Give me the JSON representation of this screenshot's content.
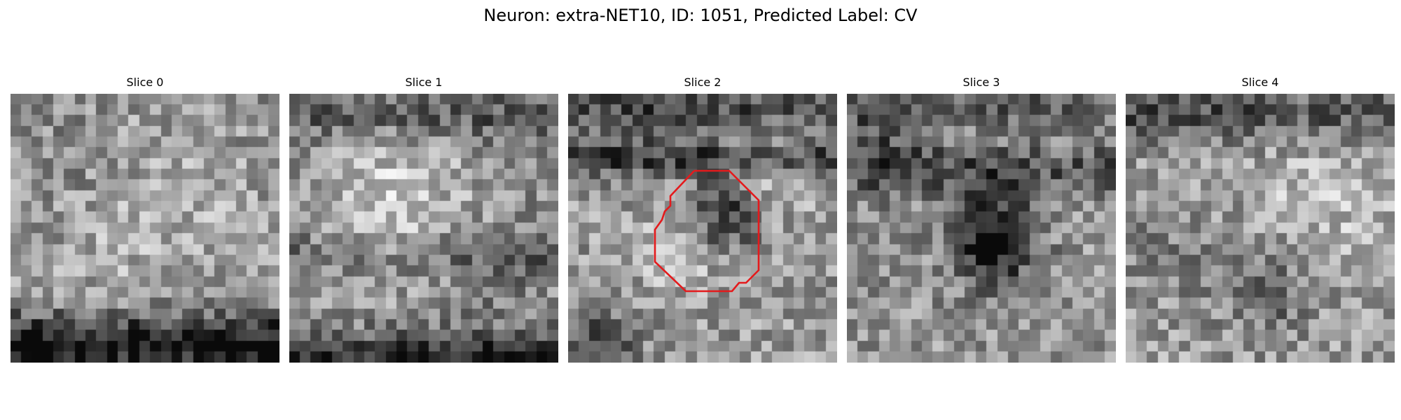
{
  "figure": {
    "title": "Neuron: extra-NET10, ID: 1051, Predicted Label: CV",
    "grid_size": 25,
    "outline_color": "#e41a1c"
  },
  "panels": [
    {
      "title": "Slice 0",
      "seed": 11,
      "base": 0.55,
      "blobs": [
        [
          12,
          12,
          9,
          0.14
        ],
        [
          6,
          6,
          4,
          -0.08
        ]
      ],
      "bands": [
        [
          22,
          1.8,
          -0.38
        ],
        [
          23.6,
          1.2,
          -0.28
        ]
      ]
    },
    {
      "title": "Slice 1",
      "seed": 23,
      "base": 0.56,
      "blobs": [
        [
          9,
          10,
          5,
          0.24
        ],
        [
          18,
          17,
          4,
          -0.06
        ]
      ],
      "bands": [
        [
          1.5,
          1.6,
          -0.22
        ],
        [
          14.5,
          1.4,
          -0.16
        ],
        [
          24,
          1.6,
          -0.42
        ]
      ]
    },
    {
      "title": "Slice 2",
      "seed": 37,
      "base": 0.6,
      "blobs": [
        [
          14,
          11,
          2.3,
          -0.42
        ],
        [
          10,
          14,
          3,
          0.16
        ],
        [
          18,
          6,
          3,
          0.18
        ],
        [
          2,
          23,
          2.5,
          -0.35
        ]
      ],
      "bands": [
        [
          1,
          1.5,
          -0.32
        ],
        [
          5.5,
          1.3,
          -0.36
        ]
      ],
      "outline": true
    },
    {
      "title": "Slice 3",
      "seed": 51,
      "base": 0.58,
      "blobs": [
        [
          13,
          14,
          2.6,
          -0.42
        ],
        [
          13,
          11,
          3,
          -0.2
        ],
        [
          3,
          4,
          3,
          -0.18
        ]
      ],
      "bands": [
        [
          6.5,
          1.6,
          -0.24
        ],
        [
          0.5,
          1.4,
          -0.22
        ]
      ]
    },
    {
      "title": "Slice 4",
      "seed": 67,
      "base": 0.62,
      "blobs": [
        [
          13,
          18,
          3,
          -0.22
        ],
        [
          18,
          9,
          5,
          0.12
        ],
        [
          4,
          14,
          4,
          -0.1
        ]
      ],
      "bands": [
        [
          1.5,
          2.0,
          -0.3
        ]
      ]
    }
  ]
}
